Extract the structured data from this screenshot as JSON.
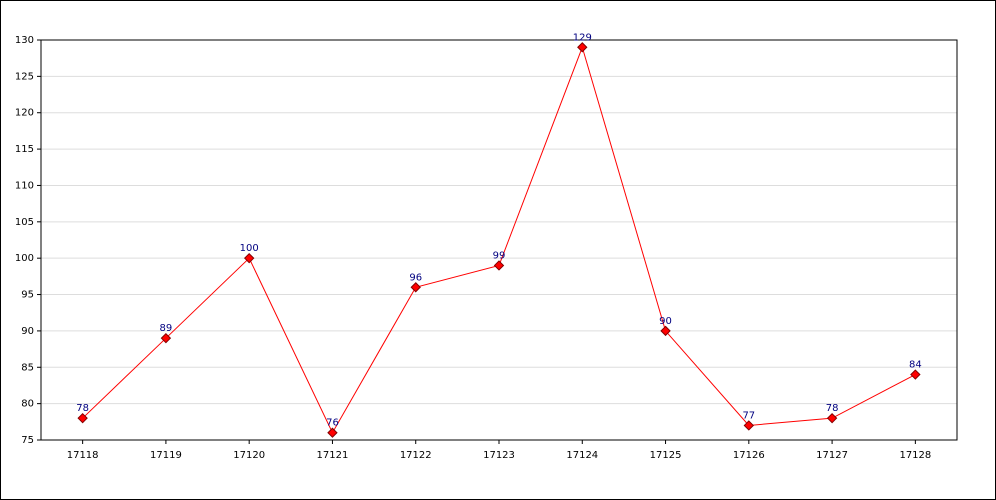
{
  "chart_data": {
    "type": "line",
    "categories": [
      "17118",
      "17119",
      "17120",
      "17121",
      "17122",
      "17123",
      "17124",
      "17125",
      "17126",
      "17127",
      "17128"
    ],
    "series": [
      {
        "color": "#ff0000",
        "values": [
          78,
          89,
          100,
          76,
          96,
          99,
          129,
          90,
          77,
          78,
          84
        ]
      }
    ],
    "ylim": [
      75,
      130
    ],
    "yticks": [
      75,
      80,
      85,
      90,
      95,
      100,
      105,
      110,
      115,
      120,
      125,
      130
    ],
    "grid": true
  }
}
